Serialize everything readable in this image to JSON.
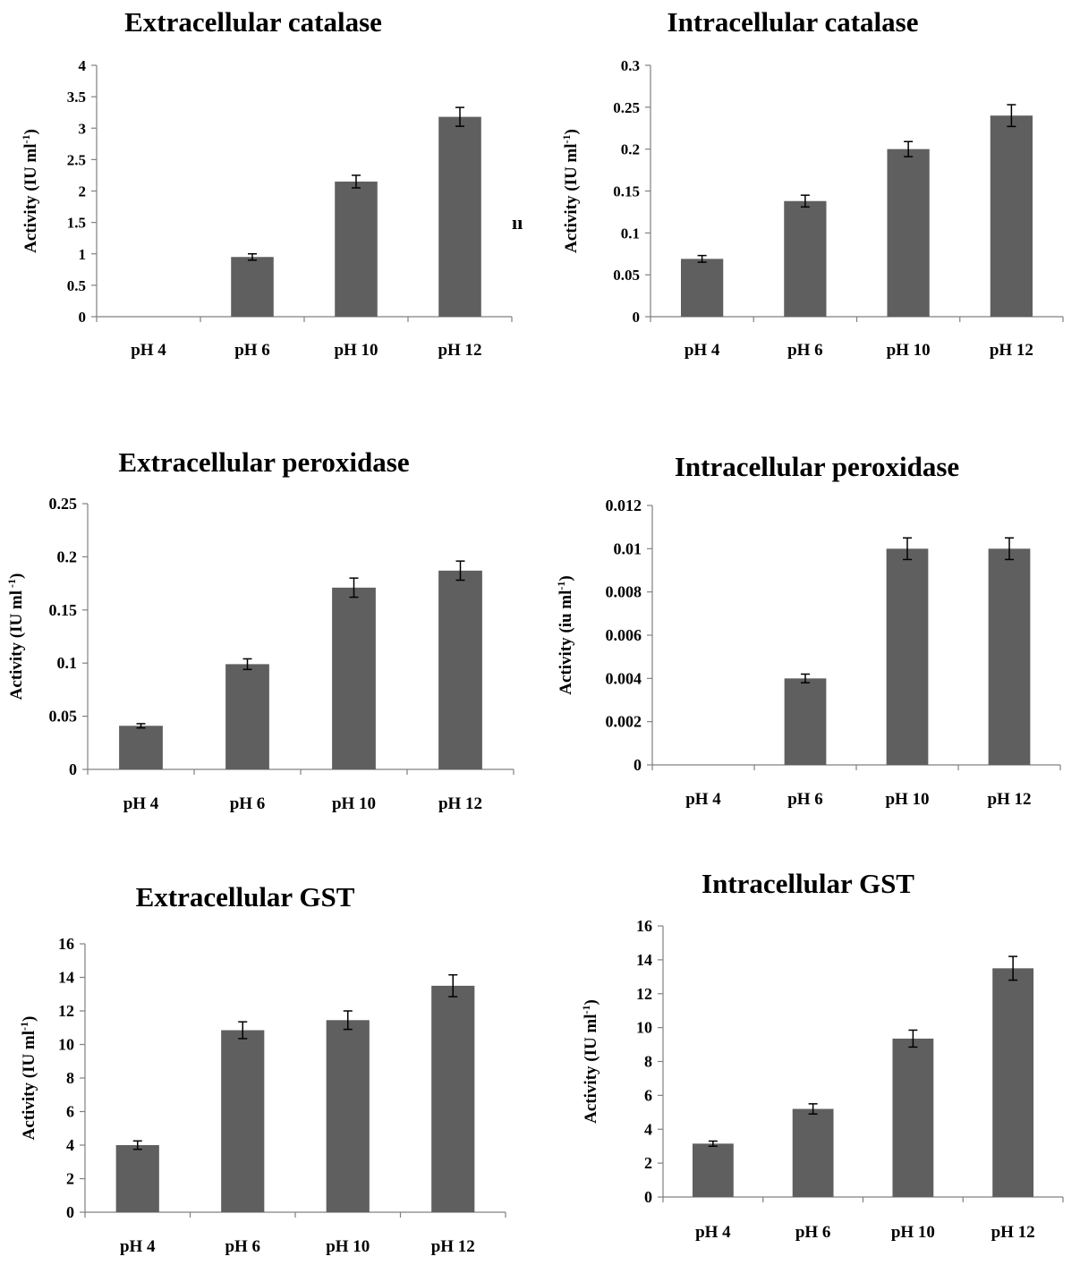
{
  "figure": {
    "bar_color": "#5f5f5f",
    "axis_color": "#808080",
    "stray_text": "ıı"
  },
  "chart_data": [
    {
      "type": "bar",
      "title": "Extracellular catalase",
      "ylabel": "Activity (IU ml",
      "ylabel_sup": "-1",
      "ylabel_close": ")",
      "categories": [
        "pH 4",
        "pH 6",
        "pH 10",
        "pH 12"
      ],
      "values": [
        0,
        0.95,
        2.15,
        3.18
      ],
      "errors": [
        0,
        0.05,
        0.1,
        0.15
      ],
      "ylim": [
        0,
        4
      ],
      "yticks": [
        0,
        0.5,
        1,
        1.5,
        2,
        2.5,
        3,
        3.5,
        4
      ],
      "ytick_labels": [
        "0",
        "0.5",
        "1",
        "1.5",
        "2",
        "2.5",
        "3",
        "3.5",
        "4"
      ]
    },
    {
      "type": "bar",
      "title": "Intracellular catalase",
      "ylabel": "Activity (IU ml",
      "ylabel_sup": "-1",
      "ylabel_close": ")",
      "categories": [
        "pH 4",
        "pH 6",
        "pH 10",
        "pH 12"
      ],
      "values": [
        0.069,
        0.138,
        0.2,
        0.24
      ],
      "errors": [
        0.004,
        0.007,
        0.009,
        0.013
      ],
      "ylim": [
        0,
        0.3
      ],
      "yticks": [
        0,
        0.05,
        0.1,
        0.15,
        0.2,
        0.25,
        0.3
      ],
      "ytick_labels": [
        "0",
        "0.05",
        "0.1",
        "0.15",
        "0.2",
        "0.25",
        "0.3"
      ]
    },
    {
      "type": "bar",
      "title": "Extracellular peroxidase",
      "ylabel": "Activity (IU ml",
      "ylabel_sup": " -1",
      "ylabel_close": ")",
      "categories": [
        "pH 4",
        "pH 6",
        "pH 10",
        "pH 12"
      ],
      "values": [
        0.041,
        0.099,
        0.171,
        0.187
      ],
      "errors": [
        0.002,
        0.005,
        0.009,
        0.009
      ],
      "ylim": [
        0,
        0.25
      ],
      "yticks": [
        0,
        0.05,
        0.1,
        0.15,
        0.2,
        0.25
      ],
      "ytick_labels": [
        "0",
        "0.05",
        "0.1",
        "0.15",
        "0.2",
        "0.25"
      ]
    },
    {
      "type": "bar",
      "title": "Intracellular peroxidase",
      "ylabel": "Activity (iu ml",
      "ylabel_sup": "-1",
      "ylabel_close": ")",
      "categories": [
        "pH 4",
        "pH 6",
        "pH 10",
        "pH 12"
      ],
      "values": [
        0,
        0.004,
        0.01,
        0.01
      ],
      "errors": [
        0,
        0.0002,
        0.0005,
        0.0005
      ],
      "ylim": [
        0,
        0.012
      ],
      "yticks": [
        0,
        0.002,
        0.004,
        0.006,
        0.008,
        0.01,
        0.012
      ],
      "ytick_labels": [
        "0",
        "0.002",
        "0.004",
        "0.006",
        "0.008",
        "0.01",
        "0.012"
      ]
    },
    {
      "type": "bar",
      "title": "Extracellular GST",
      "ylabel": "Activity (IU ml",
      "ylabel_sup": "-1",
      "ylabel_close": ")",
      "categories": [
        "pH 4",
        "pH 6",
        "pH 10",
        "pH 12"
      ],
      "values": [
        4.0,
        10.85,
        11.45,
        13.5
      ],
      "errors": [
        0.25,
        0.5,
        0.55,
        0.65
      ],
      "ylim": [
        0,
        16
      ],
      "yticks": [
        0,
        2,
        4,
        6,
        8,
        10,
        12,
        14,
        16
      ],
      "ytick_labels": [
        "0",
        "2",
        "4",
        "6",
        "8",
        "10",
        "12",
        "14",
        "16"
      ]
    },
    {
      "type": "bar",
      "title": "Intracellular GST",
      "ylabel": "Activity (IU ml",
      "ylabel_sup": "-1",
      "ylabel_close": ")",
      "categories": [
        "pH 4",
        "pH 6",
        "pH 10",
        "pH 12"
      ],
      "values": [
        3.15,
        5.2,
        9.35,
        13.5
      ],
      "errors": [
        0.15,
        0.3,
        0.5,
        0.7
      ],
      "ylim": [
        0,
        16
      ],
      "yticks": [
        0,
        2,
        4,
        6,
        8,
        10,
        12,
        14,
        16
      ],
      "ytick_labels": [
        "0",
        "2",
        "4",
        "6",
        "8",
        "10",
        "12",
        "14",
        "16"
      ]
    }
  ]
}
